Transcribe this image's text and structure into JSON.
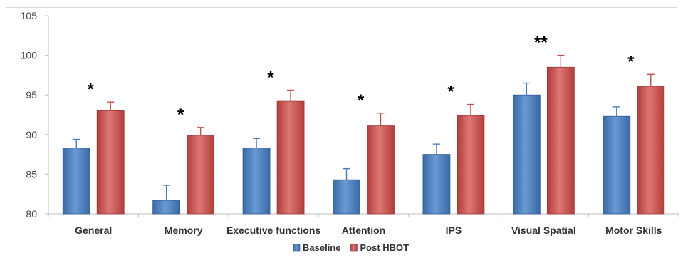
{
  "chart_data": {
    "type": "bar",
    "title": "",
    "xlabel": "",
    "ylabel": "",
    "ylim": [
      80,
      105
    ],
    "yticks": [
      80,
      85,
      90,
      95,
      100,
      105
    ],
    "grid": false,
    "legend_position": "bottom",
    "categories": [
      "General",
      "Memory",
      "Executive functions",
      "Attention",
      "IPS",
      "Visual Spatial",
      "Motor Skills"
    ],
    "series": [
      {
        "name": "Baseline",
        "color": "#4a7ebb",
        "values": [
          88.3,
          81.7,
          88.3,
          84.3,
          87.5,
          95.0,
          92.3
        ],
        "errors": [
          1.1,
          1.9,
          1.2,
          1.4,
          1.3,
          1.5,
          1.2
        ]
      },
      {
        "name": "Post HBOT",
        "color": "#c0504d",
        "values": [
          93.0,
          89.9,
          94.2,
          91.1,
          92.4,
          98.5,
          96.1
        ],
        "errors": [
          1.1,
          1.0,
          1.4,
          1.6,
          1.4,
          1.5,
          1.5
        ]
      }
    ],
    "significance": [
      "*",
      "*",
      "*",
      "*",
      "*",
      "**",
      "*"
    ]
  }
}
